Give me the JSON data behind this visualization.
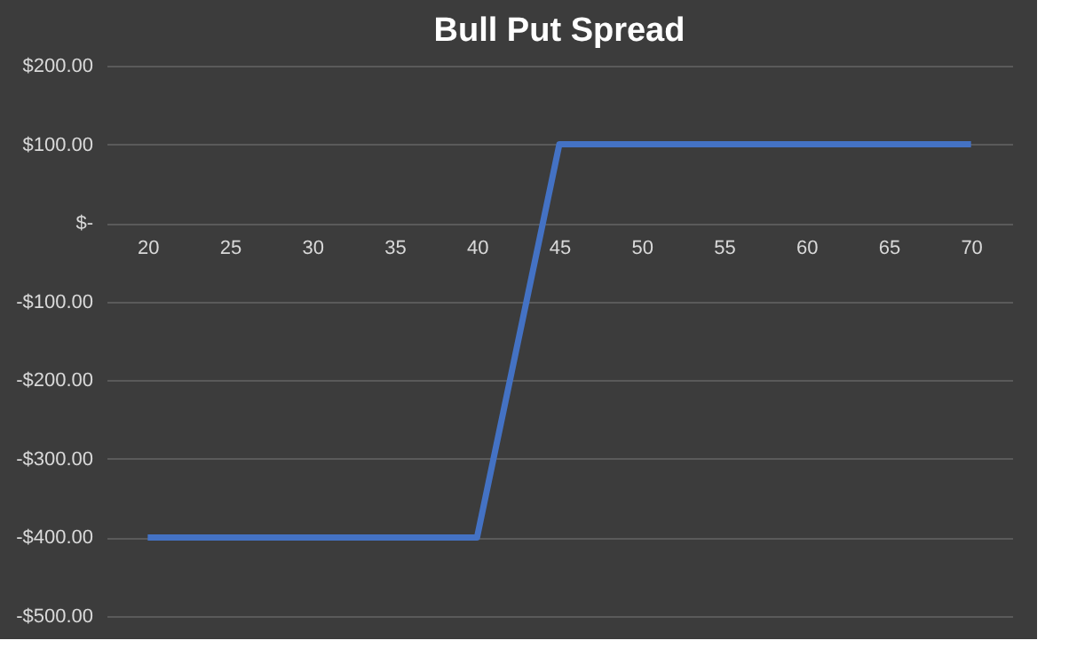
{
  "chart_data": {
    "type": "line",
    "title": "Bull Put Spread",
    "categories": [
      "20",
      "25",
      "30",
      "35",
      "40",
      "45",
      "50",
      "55",
      "60",
      "65",
      "70"
    ],
    "series": [
      {
        "color": "#4472c4",
        "values": [
          -400,
          -400,
          -400,
          -400,
          -400,
          100,
          100,
          100,
          100,
          100,
          100
        ]
      }
    ],
    "ylim": [
      -500,
      200
    ],
    "yticks": [
      {
        "value": -500,
        "label": "-$500.00"
      },
      {
        "value": -400,
        "label": "-$400.00"
      },
      {
        "value": -300,
        "label": "-$300.00"
      },
      {
        "value": -200,
        "label": "-$200.00"
      },
      {
        "value": -100,
        "label": "-$100.00"
      },
      {
        "value": 0,
        "label": "$-"
      },
      {
        "value": 100,
        "label": "$100.00"
      },
      {
        "value": 200,
        "label": "$200.00"
      }
    ],
    "grid": "y",
    "marker": "none",
    "line_style": "solid"
  }
}
